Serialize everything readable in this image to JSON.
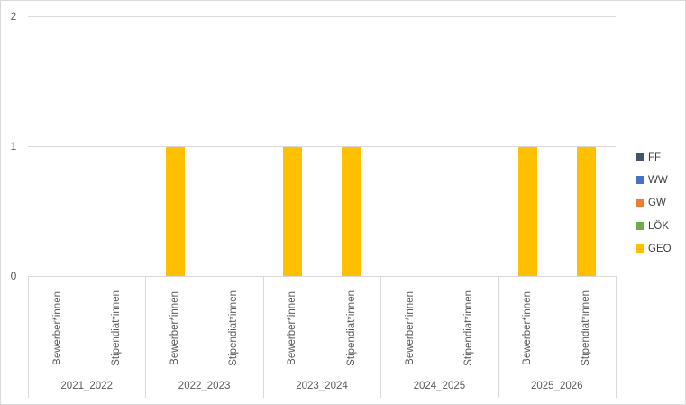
{
  "chart_data": {
    "type": "bar",
    "title": "",
    "xlabel": "",
    "ylabel": "",
    "groups": [
      "2021_2022",
      "2022_2023",
      "2023_2024",
      "2024_2025",
      "2025_2026"
    ],
    "subcategories": [
      "Bewerber*innen",
      "Stipendiat*innen"
    ],
    "series": [
      {
        "name": "FF",
        "color": "#44546a",
        "values": [
          [
            0,
            0
          ],
          [
            0,
            0
          ],
          [
            0,
            0
          ],
          [
            0,
            0
          ],
          [
            0,
            0
          ]
        ]
      },
      {
        "name": "WW",
        "color": "#4472c4",
        "values": [
          [
            0,
            0
          ],
          [
            0,
            0
          ],
          [
            0,
            0
          ],
          [
            0,
            0
          ],
          [
            0,
            0
          ]
        ]
      },
      {
        "name": "GW",
        "color": "#ed7d31",
        "values": [
          [
            0,
            0
          ],
          [
            0,
            0
          ],
          [
            0,
            0
          ],
          [
            0,
            0
          ],
          [
            0,
            0
          ]
        ]
      },
      {
        "name": "LÖK",
        "color": "#70ad47",
        "values": [
          [
            0,
            0
          ],
          [
            0,
            0
          ],
          [
            0,
            0
          ],
          [
            0,
            0
          ],
          [
            0,
            0
          ]
        ]
      },
      {
        "name": "GEO",
        "color": "#ffc000",
        "values": [
          [
            0,
            0
          ],
          [
            1,
            0
          ],
          [
            1,
            1
          ],
          [
            0,
            0
          ],
          [
            1,
            1
          ]
        ]
      }
    ],
    "y_ticks": [
      0,
      1,
      2
    ],
    "ylim": [
      0,
      2
    ],
    "gridlines": true,
    "legend_position": "right",
    "colors": {
      "grid": "#d9d9d9",
      "axis": "#d9d9d9",
      "tick_text": "#595959",
      "legend_text": "#404040",
      "background": "#ffffff",
      "border": "#d9d9d9"
    }
  }
}
